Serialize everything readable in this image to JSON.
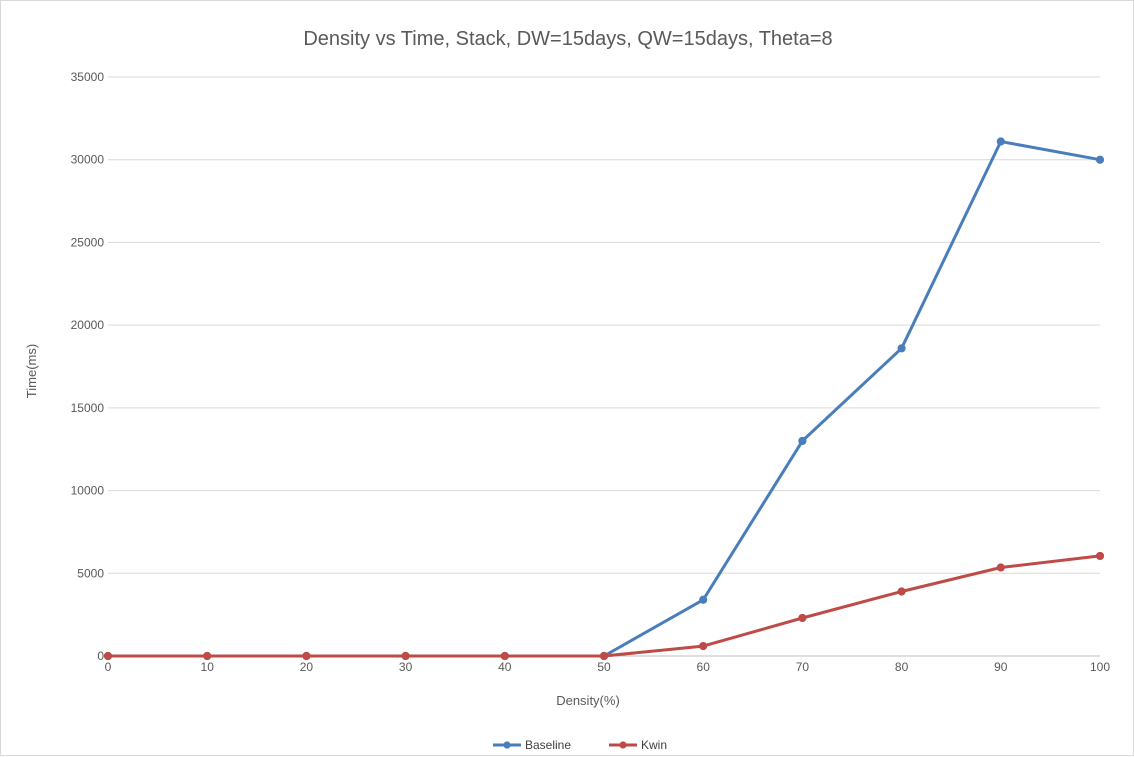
{
  "chart_data": {
    "type": "line",
    "title": "Density vs Time, Stack, DW=15days, QW=15days, Theta=8",
    "xlabel": "Density(%)",
    "ylabel": "Time(ms)",
    "x": [
      0,
      10,
      20,
      30,
      40,
      50,
      60,
      70,
      80,
      90,
      100
    ],
    "x_tick_labels": [
      "0",
      "10",
      "20",
      "30",
      "40",
      "50",
      "60",
      "70",
      "80",
      "90",
      "100"
    ],
    "xlim": [
      0,
      100
    ],
    "ylim": [
      0,
      35000
    ],
    "y_ticks": [
      0,
      5000,
      10000,
      15000,
      20000,
      25000,
      30000,
      35000
    ],
    "y_tick_labels": [
      "0",
      "5000",
      "10000",
      "15000",
      "20000",
      "25000",
      "30000",
      "35000"
    ],
    "grid": "horizontal",
    "legend_position": "bottom",
    "series": [
      {
        "name": "Baseline",
        "color": "#4a7ebb",
        "values": [
          0,
          0,
          0,
          0,
          0,
          0,
          3400,
          13000,
          18600,
          31100,
          30000
        ]
      },
      {
        "name": "Kwin",
        "color": "#be4b48",
        "values": [
          0,
          0,
          0,
          0,
          0,
          0,
          600,
          2300,
          3900,
          5350,
          6050
        ]
      }
    ]
  }
}
